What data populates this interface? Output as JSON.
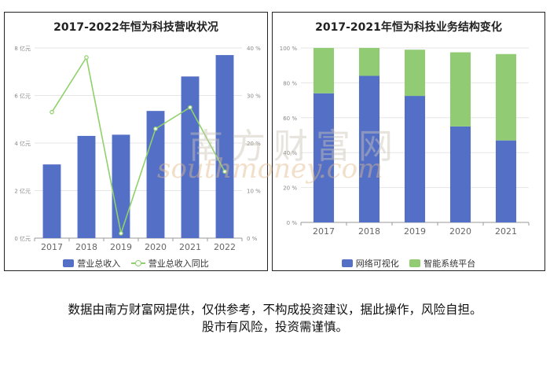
{
  "disclaimer_line1": "数据由南方财富网提供，仅供参考，不构成投资建议，据此操作，风险自担。",
  "disclaimer_line2": "股市有风险，投资需谨慎。",
  "watermark": "南方财富网",
  "watermark_sub": "southmoney.com",
  "colors": {
    "bar_blue": "#5470c6",
    "line_green": "#8fd16a",
    "stack_green": "#91cc75"
  },
  "chart_data": [
    {
      "type": "bar",
      "title": "2017-2022年恒为科技营收状况",
      "categories": [
        "2017",
        "2018",
        "2019",
        "2020",
        "2021",
        "2022"
      ],
      "series": [
        {
          "name": "营业总收入",
          "type": "bar",
          "axis": "left",
          "values": [
            3.1,
            4.3,
            4.35,
            5.35,
            6.8,
            7.7
          ]
        },
        {
          "name": "营业总收入同比",
          "type": "line",
          "axis": "right",
          "values": [
            26.5,
            38.0,
            1.0,
            23.0,
            27.5,
            14.0
          ]
        }
      ],
      "ylim_left": [
        0,
        8
      ],
      "yticks_left": [
        "0 亿元",
        "2 亿元",
        "4 亿元",
        "6 亿元",
        "8 亿元"
      ],
      "ylim_right": [
        0,
        40
      ],
      "yticks_right": [
        "0 %",
        "10 %",
        "20 %",
        "30 %",
        "40 %"
      ],
      "legend_position": "bottom",
      "grid": true
    },
    {
      "type": "bar",
      "stacked": true,
      "title": "2017-2021年恒为科技业务结构变化",
      "categories": [
        "2017",
        "2018",
        "2019",
        "2020",
        "2021"
      ],
      "series": [
        {
          "name": "网络可视化",
          "values": [
            74,
            84,
            72.5,
            55,
            47
          ]
        },
        {
          "name": "智能系统平台",
          "values": [
            26,
            16,
            26.5,
            42.5,
            49.5
          ]
        }
      ],
      "ylim": [
        0,
        100
      ],
      "yticks": [
        "0 %",
        "20 %",
        "40 %",
        "60 %",
        "80 %",
        "100 %"
      ],
      "legend_position": "bottom",
      "grid": true
    }
  ]
}
